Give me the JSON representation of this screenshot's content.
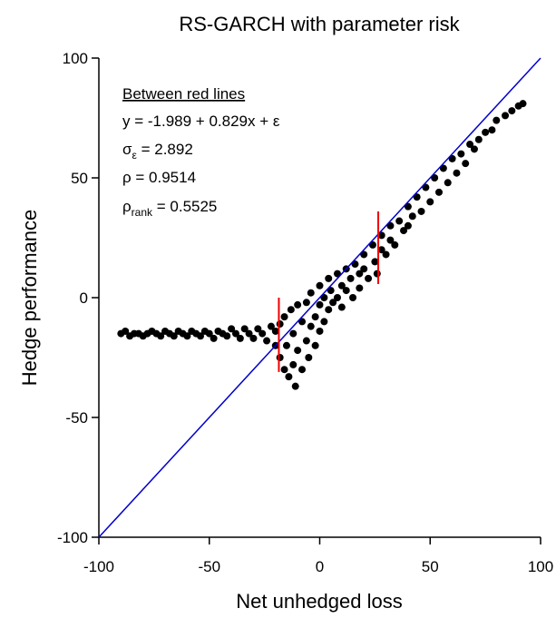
{
  "chart_data": {
    "type": "scatter",
    "title": "RS-GARCH with parameter risk",
    "x_label": "Net unhedged loss",
    "y_label": "Hedge performance",
    "xlim": [
      -100,
      100
    ],
    "ylim": [
      -100,
      100
    ],
    "xticks": [
      -100,
      -50,
      0,
      50,
      100
    ],
    "yticks": [
      -100,
      -50,
      0,
      50,
      100
    ],
    "color": "#000000",
    "x": [
      -90,
      -88,
      -86,
      -84,
      -82,
      -80,
      -78,
      -76,
      -74,
      -72,
      -70,
      -68,
      -66,
      -64,
      -62,
      -60,
      -58,
      -56,
      -54,
      -52,
      -50,
      -48,
      -46,
      -44,
      -42,
      -40,
      -38,
      -36,
      -34,
      -32,
      -30,
      -28,
      -26,
      -24,
      -22,
      -20,
      -20,
      -18,
      -18,
      -16,
      -16,
      -15,
      -14,
      -13,
      -12,
      -12,
      -11,
      -10,
      -10,
      -8,
      -8,
      -6,
      -6,
      -5,
      -4,
      -4,
      -2,
      -2,
      0,
      0,
      0,
      2,
      2,
      4,
      4,
      5,
      6,
      8,
      8,
      10,
      10,
      12,
      12,
      14,
      15,
      16,
      18,
      18,
      20,
      20,
      22,
      24,
      25,
      26,
      28,
      28,
      30,
      32,
      32,
      34,
      36,
      38,
      40,
      40,
      42,
      44,
      46,
      48,
      50,
      52,
      54,
      56,
      58,
      60,
      62,
      64,
      66,
      68,
      70,
      72,
      75,
      78,
      80,
      84,
      87,
      90,
      92
    ],
    "values": [
      -15,
      -14,
      -16,
      -15,
      -15,
      -16,
      -15,
      -14,
      -15,
      -16,
      -14,
      -15,
      -16,
      -14,
      -15,
      -16,
      -14,
      -15,
      -16,
      -14,
      -15,
      -17,
      -14,
      -15,
      -16,
      -13,
      -15,
      -17,
      -13,
      -15,
      -17,
      -13,
      -15,
      -18,
      -12,
      -14,
      -20,
      -11,
      -25,
      -30,
      -8,
      -20,
      -33,
      -5,
      -15,
      -28,
      -37,
      -3,
      -22,
      -10,
      -30,
      -2,
      -18,
      -25,
      2,
      -12,
      -8,
      -20,
      5,
      -3,
      -14,
      0,
      -10,
      8,
      -5,
      3,
      -2,
      10,
      0,
      5,
      -4,
      12,
      3,
      8,
      0,
      14,
      10,
      4,
      18,
      12,
      8,
      22,
      15,
      10,
      26,
      20,
      18,
      30,
      24,
      22,
      32,
      28,
      38,
      30,
      34,
      42,
      36,
      46,
      40,
      50,
      44,
      54,
      48,
      58,
      52,
      60,
      56,
      64,
      62,
      66,
      69,
      70,
      74,
      76,
      78,
      80,
      81
    ],
    "reference_line": {
      "color": "#0000cc",
      "x": [
        -100,
        100
      ],
      "y": [
        -100,
        100
      ]
    },
    "red_lines": [
      {
        "color": "#ee0000",
        "x": -18.5,
        "y": [
          -31,
          0
        ]
      },
      {
        "color": "#ee0000",
        "x": 26.5,
        "y": [
          5.7,
          36
        ]
      }
    ],
    "annotations": {
      "heading": "Between red lines",
      "equation": "y = -1.989 + 0.829x + ε",
      "sigma": {
        "symbol": "σ",
        "sub": "ε",
        "text": " = 2.892"
      },
      "rho": "ρ = 0.9514",
      "rho_rank": {
        "symbol": "ρ",
        "sub": "rank",
        "text": " = 0.5525"
      }
    }
  }
}
